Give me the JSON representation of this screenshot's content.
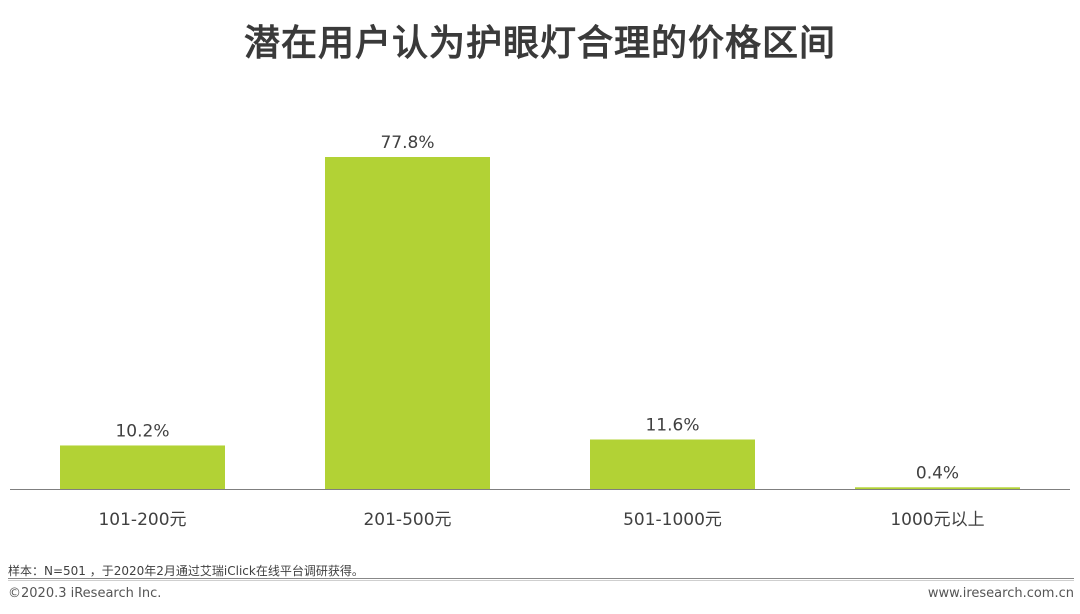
{
  "chart_data": {
    "type": "bar",
    "title": "潜在用户认为护眼灯合理的价格区间",
    "categories": [
      "101-200元",
      "201-500元",
      "501-1000元",
      "1000元以上"
    ],
    "values": [
      10.2,
      77.8,
      11.6,
      0.4
    ],
    "data_labels": [
      "10.2%",
      "77.8%",
      "11.6%",
      "0.4%"
    ],
    "unit": "%",
    "ylim": [
      0,
      77.8
    ],
    "bar_color": "#b2d235",
    "grid": false,
    "legend": "none"
  },
  "footer": {
    "source": "样本：N=501 ，于2020年2月通过艾瑞iClick在线平台调研获得。",
    "copyright": "©2020.3 iResearch Inc.",
    "website": "www.iresearch.com.cn"
  }
}
